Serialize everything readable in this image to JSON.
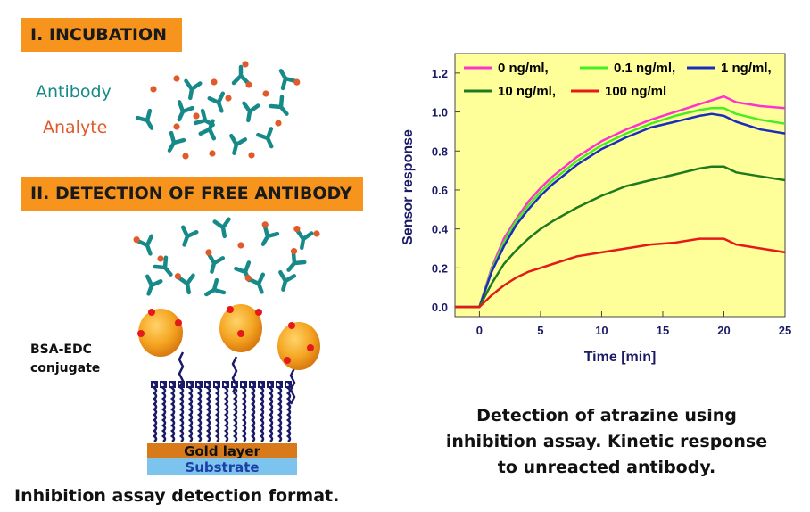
{
  "left_panel": {
    "step1_title": "I.  INCUBATION",
    "step2_title": "II.  DETECTION OF FREE ANTIBODY",
    "legend_antibody": "Antibody",
    "legend_analyte": "Analyte",
    "conjugate_line1": "BSA-EDC",
    "conjugate_line2": "conjugate",
    "gold_layer": "Gold layer",
    "substrate": "Substrate",
    "caption": "Inhibition assay detection format."
  },
  "right_panel": {
    "caption_line1": "Detection of atrazine using",
    "caption_line2": "inhibition assay. Kinetic response",
    "caption_line3": "to unreacted antibody."
  },
  "colors": {
    "banner": "#f7941d",
    "antibody": "#168a88",
    "analyte": "#e05a2a",
    "plot_bg": "#ffff99"
  },
  "chart_data": {
    "type": "line",
    "title": "",
    "xlabel": "Time [min]",
    "ylabel": "Sensor response",
    "xlim": [
      -2,
      25
    ],
    "ylim": [
      -0.05,
      1.3
    ],
    "xticks": [
      0,
      5,
      10,
      15,
      20,
      25
    ],
    "yticks": [
      0.0,
      0.2,
      0.4,
      0.6,
      0.8,
      1.0,
      1.2
    ],
    "legend_position": "top",
    "grid": false,
    "series": [
      {
        "name": "0 ng/ml,",
        "color": "#ff33cc",
        "x": [
          -2,
          0,
          1,
          2,
          3,
          4,
          5,
          6,
          8,
          10,
          12,
          14,
          16,
          18,
          19,
          20,
          21,
          23,
          25
        ],
        "y": [
          0.0,
          0.0,
          0.2,
          0.35,
          0.45,
          0.54,
          0.61,
          0.67,
          0.77,
          0.85,
          0.91,
          0.96,
          1.0,
          1.04,
          1.06,
          1.08,
          1.05,
          1.03,
          1.02
        ]
      },
      {
        "name": "0.1 ng/ml,",
        "color": "#44ee22",
        "x": [
          -2,
          0,
          1,
          2,
          3,
          4,
          5,
          6,
          8,
          10,
          12,
          14,
          16,
          18,
          19,
          20,
          21,
          23,
          25
        ],
        "y": [
          0.0,
          0.0,
          0.19,
          0.33,
          0.44,
          0.52,
          0.59,
          0.65,
          0.75,
          0.83,
          0.89,
          0.94,
          0.98,
          1.01,
          1.02,
          1.02,
          0.99,
          0.96,
          0.94
        ]
      },
      {
        "name": "1 ng/ml,",
        "color": "#1a2dbb",
        "x": [
          -2,
          0,
          1,
          2,
          3,
          4,
          5,
          6,
          8,
          10,
          12,
          14,
          16,
          18,
          19,
          20,
          21,
          23,
          25
        ],
        "y": [
          0.0,
          0.0,
          0.18,
          0.31,
          0.42,
          0.5,
          0.57,
          0.63,
          0.73,
          0.81,
          0.87,
          0.92,
          0.95,
          0.98,
          0.99,
          0.98,
          0.95,
          0.91,
          0.89
        ]
      },
      {
        "name": "10 ng/ml,",
        "color": "#1f7a1f",
        "x": [
          -2,
          0,
          1,
          2,
          3,
          4,
          5,
          6,
          8,
          10,
          12,
          14,
          16,
          18,
          19,
          20,
          21,
          23,
          25
        ],
        "y": [
          0.0,
          0.0,
          0.12,
          0.22,
          0.29,
          0.35,
          0.4,
          0.44,
          0.51,
          0.57,
          0.62,
          0.65,
          0.68,
          0.71,
          0.72,
          0.72,
          0.69,
          0.67,
          0.65
        ]
      },
      {
        "name": "100 ng/ml",
        "color": "#e41a1a",
        "x": [
          -2,
          0,
          1,
          2,
          3,
          4,
          5,
          6,
          8,
          10,
          12,
          14,
          16,
          18,
          19,
          20,
          21,
          23,
          25
        ],
        "y": [
          0.0,
          0.0,
          0.06,
          0.11,
          0.15,
          0.18,
          0.2,
          0.22,
          0.26,
          0.28,
          0.3,
          0.32,
          0.33,
          0.35,
          0.35,
          0.35,
          0.32,
          0.3,
          0.28
        ]
      }
    ]
  }
}
